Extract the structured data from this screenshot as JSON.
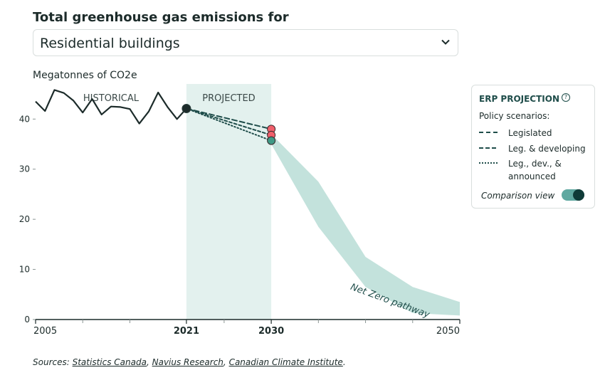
{
  "header": {
    "title": "Total greenhouse gas emissions for",
    "selector_value": "Residential buildings"
  },
  "chart_data": {
    "type": "line",
    "ylabel": "Megatonnes of CO2e",
    "ylim": [
      0,
      47
    ],
    "xlim": [
      2005,
      2050
    ],
    "y_ticks": [
      0,
      10,
      20,
      30,
      40
    ],
    "x_tick_labels": [
      {
        "year": 2005,
        "label": "2005",
        "bold": false
      },
      {
        "year": 2021,
        "label": "2021",
        "bold": true
      },
      {
        "year": 2030,
        "label": "2030",
        "bold": true
      },
      {
        "year": 2050,
        "label": "2050",
        "bold": false
      }
    ],
    "x_minor_ticks": [
      2010,
      2015,
      2025,
      2035,
      2040,
      2045
    ],
    "regions": [
      {
        "label": "HISTORICAL",
        "from": 2005,
        "to": 2021
      },
      {
        "label": "PROJECTED",
        "from": 2021,
        "to": 2030,
        "shaded": true
      }
    ],
    "historical": {
      "x": [
        2005,
        2006,
        2007,
        2008,
        2009,
        2010,
        2011,
        2012,
        2013,
        2014,
        2015,
        2016,
        2017,
        2018,
        2019,
        2020,
        2021
      ],
      "y": [
        43.5,
        41.6,
        45.8,
        45.2,
        43.7,
        41.3,
        44.0,
        40.9,
        42.5,
        42.4,
        42.0,
        39.1,
        41.5,
        45.3,
        42.4,
        40.0,
        42.1
      ]
    },
    "scenarios": [
      {
        "name": "Legislated",
        "style": "dashed",
        "x": [
          2021,
          2030
        ],
        "y": [
          42.1,
          38.0
        ]
      },
      {
        "name": "Leg. & developing",
        "style": "short-dashed",
        "x": [
          2021,
          2030
        ],
        "y": [
          42.1,
          36.8
        ]
      },
      {
        "name": "Leg., dev., & announced",
        "style": "dotted",
        "x": [
          2021,
          2030
        ],
        "y": [
          42.1,
          35.7
        ]
      }
    ],
    "net_zero_band": {
      "label": "Net Zero pathway",
      "x": [
        2030,
        2035,
        2040,
        2045,
        2050
      ],
      "upper": [
        37.0,
        27.5,
        12.5,
        6.5,
        3.5
      ],
      "lower": [
        35.0,
        18.5,
        6.5,
        1.3,
        0.8
      ]
    },
    "colors": {
      "historical": "#1c2b2a",
      "scenario_line": "#1f4d4a",
      "band": "#b9ddd6",
      "projected_shade": "#e3f1ee",
      "marker_red": "#f05f6b",
      "marker_green": "#3f9a86"
    }
  },
  "legend": {
    "title": "ERP PROJECTION",
    "help_icon": "question-circle-icon",
    "subtitle": "Policy scenarios:",
    "items": [
      "Legislated",
      "Leg. & developing",
      "Leg., dev., &\nannounced"
    ],
    "comparison_label": "Comparison view",
    "comparison_on": true
  },
  "sources": {
    "prefix": "Sources:",
    "links": [
      "Statistics Canada",
      "Navius Research",
      "Canadian Climate Institute"
    ],
    "sep": ",",
    "end": "."
  }
}
